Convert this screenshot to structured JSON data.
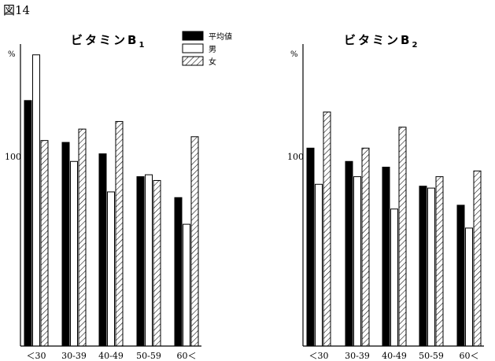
{
  "figure_label": "図14",
  "colors": {
    "mean": "#000000",
    "male": "#ffffff",
    "female_hatch": "#000000",
    "axis": "#000000"
  },
  "legend": [
    {
      "key": "mean",
      "label": "平均値",
      "style": "solid"
    },
    {
      "key": "male",
      "label": "男",
      "style": "open"
    },
    {
      "key": "female",
      "label": "女",
      "style": "hatched"
    }
  ],
  "chart_data": [
    {
      "type": "bar",
      "title": "ビタミンB",
      "title_subscript": "1",
      "ylabel": "%",
      "yticks": [
        100
      ],
      "ylim": [
        0,
        200
      ],
      "categories": [
        "＜30",
        "30-39",
        "40-49",
        "50-59",
        "60＜"
      ],
      "series": [
        {
          "name": "平均値",
          "values": [
            129,
            107,
            101,
            89,
            78
          ]
        },
        {
          "name": "男",
          "values": [
            153,
            97,
            81,
            90,
            64
          ]
        },
        {
          "name": "女",
          "values": [
            108,
            114,
            118,
            87,
            110
          ]
        }
      ]
    },
    {
      "type": "bar",
      "title": "ビタミンB",
      "title_subscript": "2",
      "ylabel": "%",
      "yticks": [
        100
      ],
      "ylim": [
        0,
        200
      ],
      "categories": [
        "＜30",
        "30-39",
        "40-49",
        "50-59",
        "60＜"
      ],
      "series": [
        {
          "name": "平均値",
          "values": [
            104,
            97,
            94,
            84,
            74
          ]
        },
        {
          "name": "男",
          "values": [
            85,
            89,
            72,
            83,
            62
          ]
        },
        {
          "name": "女",
          "values": [
            123,
            104,
            115,
            89,
            92
          ]
        }
      ]
    }
  ]
}
